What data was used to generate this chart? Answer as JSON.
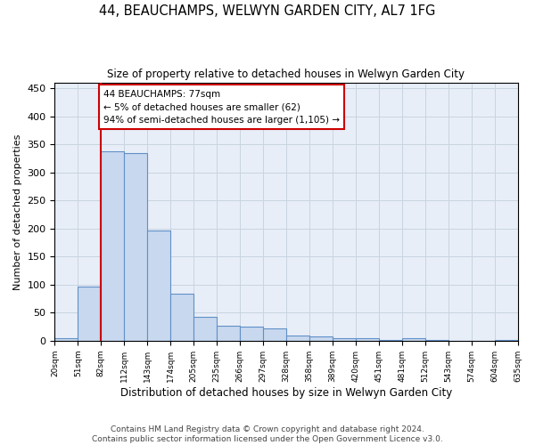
{
  "title": "44, BEAUCHAMPS, WELWYN GARDEN CITY, AL7 1FG",
  "subtitle": "Size of property relative to detached houses in Welwyn Garden City",
  "xlabel": "Distribution of detached houses by size in Welwyn Garden City",
  "ylabel": "Number of detached properties",
  "bar_values": [
    5,
    97,
    338,
    335,
    197,
    84,
    42,
    26,
    25,
    22,
    9,
    7,
    5,
    4,
    1,
    4,
    1,
    0,
    0,
    2
  ],
  "bar_labels": [
    "20sqm",
    "51sqm",
    "82sqm",
    "112sqm",
    "143sqm",
    "174sqm",
    "205sqm",
    "235sqm",
    "266sqm",
    "297sqm",
    "328sqm",
    "358sqm",
    "389sqm",
    "420sqm",
    "451sqm",
    "481sqm",
    "512sqm",
    "543sqm",
    "574sqm",
    "604sqm",
    "635sqm"
  ],
  "bar_color": "#c8d8ee",
  "bar_edge_color": "#6090c8",
  "annotation_text": "44 BEAUCHAMPS: 77sqm\n← 5% of detached houses are smaller (62)\n94% of semi-detached houses are larger (1,105) →",
  "annotation_box_color": "#ffffff",
  "annotation_box_edge": "#cc0000",
  "ylim": [
    0,
    460
  ],
  "yticks": [
    0,
    50,
    100,
    150,
    200,
    250,
    300,
    350,
    400,
    450
  ],
  "red_line_x": 1.5,
  "footer_line1": "Contains HM Land Registry data © Crown copyright and database right 2024.",
  "footer_line2": "Contains public sector information licensed under the Open Government Licence v3.0.",
  "background_color": "#ffffff",
  "plot_bg_color": "#e8eef8",
  "grid_color": "#c8d4e0"
}
